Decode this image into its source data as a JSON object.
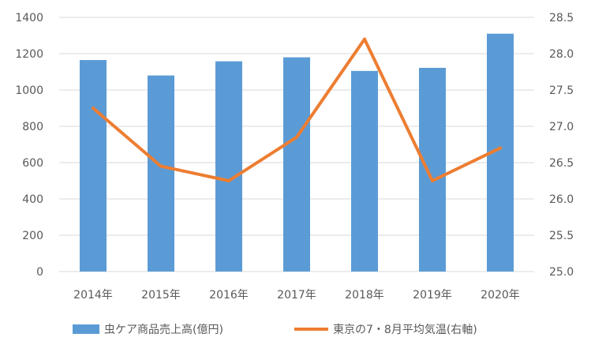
{
  "chart_data": {
    "type": "bar+line",
    "categories": [
      "2014年",
      "2015年",
      "2016年",
      "2017年",
      "2018年",
      "2019年",
      "2020年"
    ],
    "series": [
      {
        "name": "虫ケア商品売上高(億円)",
        "type": "bar",
        "axis": "left",
        "color": "#5B9BD5",
        "values": [
          1165,
          1080,
          1158,
          1180,
          1105,
          1122,
          1310
        ]
      },
      {
        "name": "東京の7・8月平均気温(右軸)",
        "type": "line",
        "axis": "right",
        "color": "#ED7D31",
        "values": [
          27.25,
          26.45,
          26.25,
          26.85,
          28.2,
          26.25,
          26.7
        ]
      }
    ],
    "y_left": {
      "min": 0,
      "max": 1400,
      "ticks": [
        "0",
        "200",
        "400",
        "600",
        "800",
        "1000",
        "1200",
        "1400"
      ]
    },
    "y_right": {
      "min": 25.0,
      "max": 28.5,
      "ticks": [
        "25.0",
        "25.5",
        "26.0",
        "26.5",
        "27.0",
        "27.5",
        "28.0",
        "28.5"
      ]
    },
    "grid": true,
    "legend_position": "bottom"
  }
}
